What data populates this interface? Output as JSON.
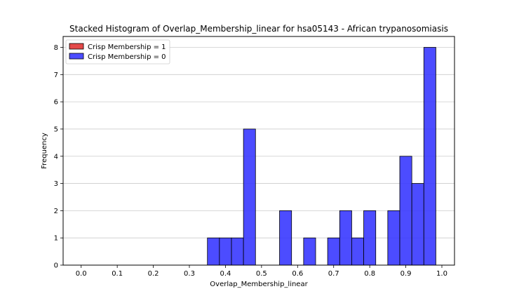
{
  "chart_data": {
    "type": "bar",
    "subtype": "stacked-histogram",
    "title": "Stacked Histogram of Overlap_Membership_linear for hsa05143 - African trypanosomiasis",
    "xlabel": "Overlap_Membership_linear",
    "ylabel": "Frequency",
    "xlim": [
      -0.05,
      1.035
    ],
    "ylim": [
      0,
      8.4
    ],
    "x_ticks": [
      0.0,
      0.1,
      0.2,
      0.3,
      0.4,
      0.5,
      0.6,
      0.7,
      0.8,
      0.9,
      1.0
    ],
    "x_tick_labels": [
      "0.0",
      "0.1",
      "0.2",
      "0.3",
      "0.4",
      "0.5",
      "0.6",
      "0.7",
      "0.8",
      "0.9",
      "1.0"
    ],
    "y_ticks": [
      0,
      1,
      2,
      3,
      4,
      5,
      6,
      7,
      8
    ],
    "y_tick_labels": [
      "0",
      "1",
      "2",
      "3",
      "4",
      "5",
      "6",
      "7",
      "8"
    ],
    "grid": "horizontal",
    "legend_position": "top-left",
    "bin_edges": [
      0.35,
      0.3833,
      0.4167,
      0.45,
      0.4833,
      0.5167,
      0.55,
      0.5833,
      0.6167,
      0.65,
      0.6833,
      0.7167,
      0.75,
      0.7833,
      0.8167,
      0.85,
      0.8833,
      0.9167,
      0.95,
      0.9833
    ],
    "series": [
      {
        "name": "Crisp Membership = 1",
        "color": "#e03030",
        "values": [
          0,
          0,
          0,
          0,
          0,
          0,
          0,
          0,
          0,
          0,
          0,
          0,
          0,
          0,
          0,
          0,
          0,
          0,
          0
        ]
      },
      {
        "name": "Crisp Membership = 0",
        "color": "#3333ff",
        "values": [
          1,
          1,
          1,
          5,
          0,
          0,
          2,
          0,
          1,
          0,
          1,
          2,
          1,
          2,
          0,
          2,
          4,
          3,
          8
        ]
      }
    ]
  }
}
